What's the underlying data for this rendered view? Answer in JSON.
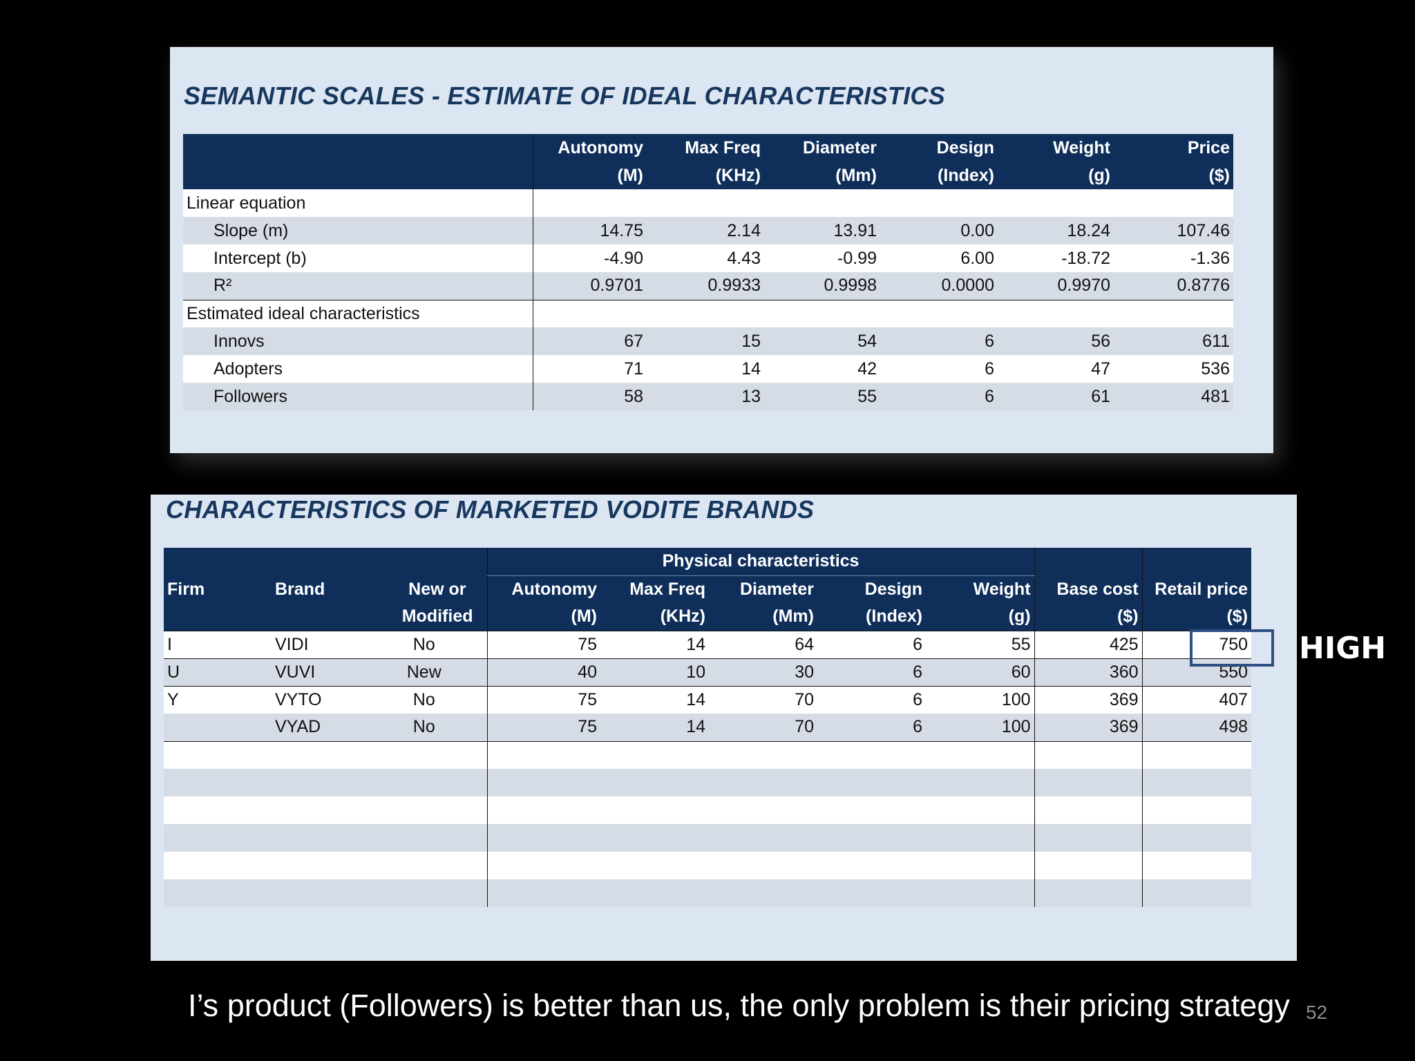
{
  "table1": {
    "title": "SEMANTIC SCALES - ESTIMATE OF IDEAL CHARACTERISTICS",
    "headers": [
      {
        "top": "Autonomy",
        "bottom": "(M)"
      },
      {
        "top": "Max Freq",
        "bottom": "(KHz)"
      },
      {
        "top": "Diameter",
        "bottom": "(Mm)"
      },
      {
        "top": "Design",
        "bottom": "(Index)"
      },
      {
        "top": "Weight",
        "bottom": "(g)"
      },
      {
        "top": "Price",
        "bottom": "($)"
      }
    ],
    "section1": "Linear equation",
    "rows1": [
      {
        "label": "Slope (m)",
        "values": [
          "14.75",
          "2.14",
          "13.91",
          "0.00",
          "18.24",
          "107.46"
        ]
      },
      {
        "label": "Intercept (b)",
        "values": [
          "-4.90",
          "4.43",
          "-0.99",
          "6.00",
          "-18.72",
          "-1.36"
        ]
      },
      {
        "label": "R²",
        "values": [
          "0.9701",
          "0.9933",
          "0.9998",
          "0.0000",
          "0.9970",
          "0.8776"
        ]
      }
    ],
    "section2": "Estimated ideal characteristics",
    "rows2": [
      {
        "label": "Innovs",
        "values": [
          "67",
          "15",
          "54",
          "6",
          "56",
          "611"
        ]
      },
      {
        "label": "Adopters",
        "values": [
          "71",
          "14",
          "42",
          "6",
          "47",
          "536"
        ]
      },
      {
        "label": "Followers",
        "values": [
          "58",
          "13",
          "55",
          "6",
          "61",
          "481"
        ]
      }
    ]
  },
  "table2": {
    "title": "CHARACTERISTICS OF MARKETED VODITE BRANDS",
    "group_header": "Physical characteristics",
    "headers": {
      "firm": "Firm",
      "brand": "Brand",
      "new_top": "New or",
      "new_bottom": "Modified",
      "autonomy_top": "Autonomy",
      "autonomy_bottom": "(M)",
      "maxfreq_top": "Max Freq",
      "maxfreq_bottom": "(KHz)",
      "diameter_top": "Diameter",
      "diameter_bottom": "(Mm)",
      "design_top": "Design",
      "design_bottom": "(Index)",
      "weight_top": "Weight",
      "weight_bottom": "(g)",
      "basecost_top": "Base cost",
      "basecost_bottom": "($)",
      "retail_top": "Retail price",
      "retail_bottom": "($)"
    },
    "rows": [
      {
        "firm": "I",
        "brand": "VIDI",
        "status": "No",
        "autonomy": "75",
        "maxfreq": "14",
        "diameter": "64",
        "design": "6",
        "weight": "55",
        "basecost": "425",
        "retail": "750"
      },
      {
        "firm": "U",
        "brand": "VUVI",
        "status": "New",
        "autonomy": "40",
        "maxfreq": "10",
        "diameter": "30",
        "design": "6",
        "weight": "60",
        "basecost": "360",
        "retail": "550"
      },
      {
        "firm": "Y",
        "brand": "VYTO",
        "status": "No",
        "autonomy": "75",
        "maxfreq": "14",
        "diameter": "70",
        "design": "6",
        "weight": "100",
        "basecost": "369",
        "retail": "407"
      },
      {
        "firm": "",
        "brand": "VYAD",
        "status": "No",
        "autonomy": "75",
        "maxfreq": "14",
        "diameter": "70",
        "design": "6",
        "weight": "100",
        "basecost": "369",
        "retail": "498"
      }
    ],
    "empty_rows": 6
  },
  "annotation": {
    "label": "HIGH",
    "box_color": "#2f4f84"
  },
  "caption": "I’s product (Followers) is better than us, the only problem is their pricing strategy",
  "page_number": "52",
  "colors": {
    "header_bg": "#0f2f5a",
    "panel_bg": "#dce6f2",
    "row_alt": "#d6dce5",
    "title": "#17375e"
  }
}
